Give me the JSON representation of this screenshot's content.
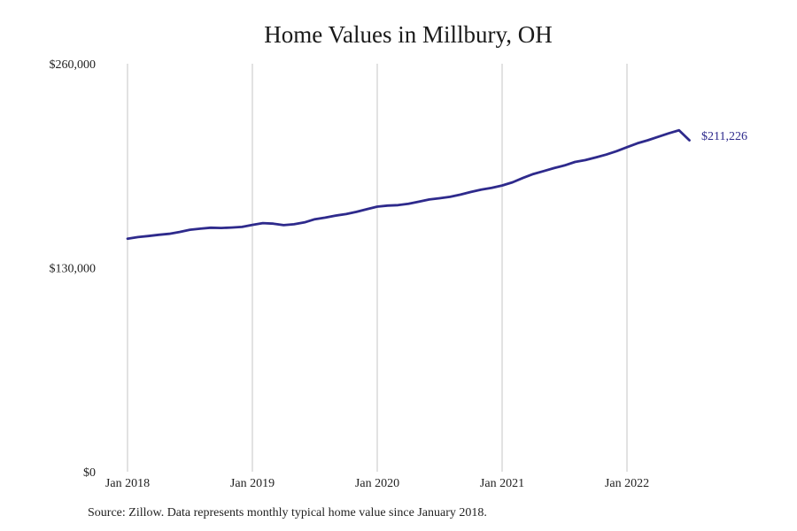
{
  "chart_data": {
    "type": "line",
    "title": "Home Values in Millbury, OH",
    "xlabel": "",
    "ylabel": "",
    "ylim": [
      0,
      260000
    ],
    "yticks": [
      {
        "value": 0,
        "label": "$0"
      },
      {
        "value": 130000,
        "label": "$130,000"
      },
      {
        "value": 260000,
        "label": "$260,000"
      }
    ],
    "xticks": [
      {
        "value": "2018-01",
        "label": "Jan 2018"
      },
      {
        "value": "2019-01",
        "label": "Jan 2019"
      },
      {
        "value": "2020-01",
        "label": "Jan 2020"
      },
      {
        "value": "2021-01",
        "label": "Jan 2021"
      },
      {
        "value": "2022-01",
        "label": "Jan 2022"
      }
    ],
    "grid": "vertical",
    "line_color": "#2e2a8c",
    "end_label": "$211,226",
    "series": [
      {
        "x": [
          "2018-01",
          "2018-02",
          "2018-03",
          "2018-04",
          "2018-05",
          "2018-06",
          "2018-07",
          "2018-08",
          "2018-09",
          "2018-10",
          "2018-11",
          "2018-12",
          "2019-01",
          "2019-02",
          "2019-03",
          "2019-04",
          "2019-05",
          "2019-06",
          "2019-07",
          "2019-08",
          "2019-09",
          "2019-10",
          "2019-11",
          "2019-12",
          "2020-01",
          "2020-02",
          "2020-03",
          "2020-04",
          "2020-05",
          "2020-06",
          "2020-07",
          "2020-08",
          "2020-09",
          "2020-10",
          "2020-11",
          "2020-12",
          "2021-01",
          "2021-02",
          "2021-03",
          "2021-04",
          "2021-05",
          "2021-06",
          "2021-07",
          "2021-08",
          "2021-09",
          "2021-10",
          "2021-11",
          "2021-12",
          "2022-01",
          "2022-02",
          "2022-03",
          "2022-04",
          "2022-05",
          "2022-06",
          "2022-07"
        ],
        "values": [
          148500,
          149500,
          150200,
          151000,
          151600,
          152800,
          154200,
          154900,
          155500,
          155300,
          155600,
          156000,
          157300,
          158400,
          158100,
          157100,
          157700,
          158900,
          160900,
          161900,
          163200,
          164200,
          165600,
          167300,
          168900,
          169600,
          169900,
          170800,
          172100,
          173500,
          174300,
          175200,
          176600,
          178300,
          179800,
          180900,
          182400,
          184400,
          187200,
          189700,
          191600,
          193500,
          195200,
          197400,
          198600,
          200300,
          202100,
          204300,
          206800,
          209300,
          211200,
          213400,
          215600,
          217600,
          211226
        ]
      }
    ]
  },
  "source_note": "Source: Zillow. Data represents monthly typical home value since January 2018."
}
